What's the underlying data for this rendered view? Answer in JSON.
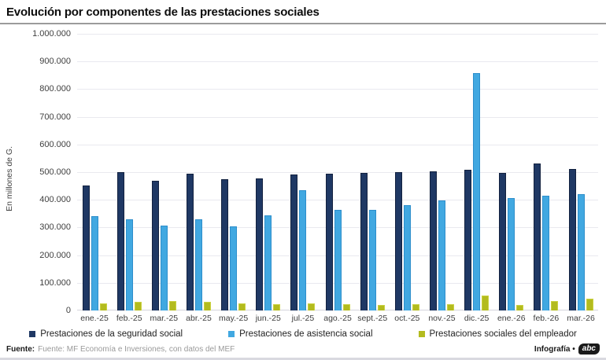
{
  "title": "Evolución por componentes de las prestaciones sociales",
  "chart_data": {
    "type": "bar",
    "title": "Evolución por componentes de las prestaciones sociales",
    "xlabel": "",
    "ylabel": "En millones de G.",
    "ylim": [
      0,
      1000000
    ],
    "grid": true,
    "legend_position": "bottom",
    "ytick_labels_top_to_bottom": [
      "1.000.000",
      "900.000",
      "800.000",
      "700.000",
      "600.000",
      "500.000",
      "400.000",
      "300.000",
      "200.000",
      "100.000",
      "0"
    ],
    "categories": [
      "ene.-25",
      "feb.-25",
      "mar.-25",
      "abr.-25",
      "may.-25",
      "jun.-25",
      "jul.-25",
      "ago.-25",
      "sept.-25",
      "oct.-25",
      "nov.-25",
      "dic.-25",
      "ene.-26",
      "feb.-26",
      "mar.-26"
    ],
    "series": [
      {
        "name": "Prestaciones de la seguridad social",
        "color": "#1f3864",
        "border": "#12213f",
        "values": [
          452000,
          499000,
          469000,
          494000,
          475000,
          478000,
          492000,
          495000,
          496000,
          501000,
          503000,
          509000,
          498000,
          532000,
          512000
        ]
      },
      {
        "name": "Prestaciones de asistencia social",
        "color": "#41a8e1",
        "border": "#2d8ecb",
        "values": [
          340000,
          330000,
          308000,
          331000,
          305000,
          345000,
          436000,
          365000,
          364000,
          381000,
          399000,
          858000,
          406000,
          414000,
          421000
        ]
      },
      {
        "name": "Prestaciones sociales del empleador",
        "color": "#b3bb1f",
        "border": "#c9d13f",
        "values": [
          25000,
          30000,
          35000,
          30000,
          26000,
          24000,
          27000,
          22000,
          21000,
          24000,
          24000,
          55000,
          21000,
          34000,
          43000
        ]
      }
    ]
  },
  "footer": {
    "source_label": "Fuente:",
    "source_text": "Fuente: MF Economía e Inversiones, con datos del MEF",
    "credit_text": "Infografía •",
    "logo_text": "abc"
  }
}
